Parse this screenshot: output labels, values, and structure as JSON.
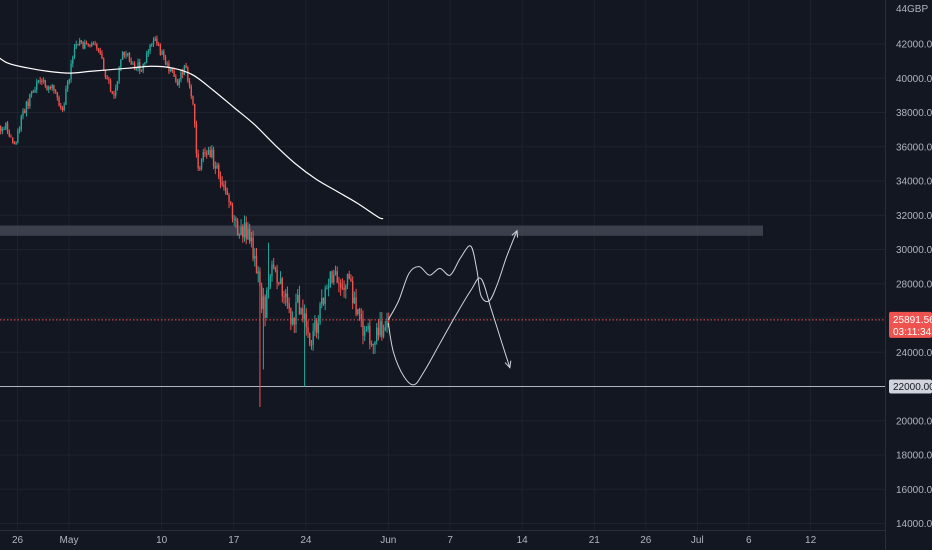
{
  "chart_data": {
    "type": "candlestick",
    "currency": "GBP",
    "y_axis_top_label": "44",
    "yticks": [
      14000,
      16000,
      18000,
      20000,
      22000,
      24000,
      26000,
      28000,
      30000,
      32000,
      34000,
      36000,
      38000,
      40000,
      42000
    ],
    "ylim": [
      13300,
      44900
    ],
    "x_ticks": [
      {
        "label": "26",
        "day": -5
      },
      {
        "label": "May",
        "day": 0
      },
      {
        "label": "10",
        "day": 9
      },
      {
        "label": "17",
        "day": 16
      },
      {
        "label": "24",
        "day": 23
      },
      {
        "label": "Jun",
        "day": 31
      },
      {
        "label": "7",
        "day": 37
      },
      {
        "label": "14",
        "day": 44
      },
      {
        "label": "21",
        "day": 51
      },
      {
        "label": "26",
        "day": 56
      },
      {
        "label": "Jul",
        "day": 61
      },
      {
        "label": "6",
        "day": 66
      },
      {
        "label": "12",
        "day": 72
      }
    ],
    "colors": {
      "up": "#26a69a",
      "down": "#ef5350",
      "ma": "#ffffff",
      "drawing": "#d1d4dc"
    },
    "candle_close_path": [
      [
        -7.3,
        37000
      ],
      [
        -6.0,
        37200
      ],
      [
        -5.4,
        36000
      ],
      [
        -4.3,
        38200
      ],
      [
        -3.0,
        39800
      ],
      [
        -1.8,
        39500
      ],
      [
        -0.6,
        38300
      ],
      [
        0.0,
        40000
      ],
      [
        0.6,
        42300
      ],
      [
        2.0,
        41700
      ],
      [
        2.6,
        42200
      ],
      [
        3.6,
        40000
      ],
      [
        4.3,
        39000
      ],
      [
        5.3,
        41600
      ],
      [
        6.3,
        40800
      ],
      [
        7.0,
        40600
      ],
      [
        8.2,
        42400
      ],
      [
        9.0,
        41400
      ],
      [
        9.8,
        40500
      ],
      [
        10.6,
        39500
      ],
      [
        11.3,
        41000
      ],
      [
        12.1,
        38000
      ],
      [
        12.5,
        34500
      ],
      [
        13.0,
        35500
      ],
      [
        13.8,
        35600
      ],
      [
        14.5,
        34500
      ],
      [
        15.3,
        33500
      ],
      [
        16.0,
        31600
      ],
      [
        16.8,
        30900
      ],
      [
        17.5,
        31200
      ],
      [
        18.2,
        29000
      ],
      [
        18.5,
        27800
      ],
      [
        19.0,
        26200
      ],
      [
        19.6,
        28500
      ],
      [
        20.4,
        28200
      ],
      [
        21.0,
        27400
      ],
      [
        21.6,
        25400
      ],
      [
        22.2,
        26700
      ],
      [
        22.9,
        25800
      ],
      [
        23.5,
        24400
      ],
      [
        24.2,
        26000
      ],
      [
        24.8,
        27600
      ],
      [
        25.6,
        28400
      ],
      [
        26.2,
        27700
      ],
      [
        27.0,
        28300
      ],
      [
        27.8,
        26900
      ],
      [
        28.4,
        25400
      ],
      [
        29.0,
        24900
      ],
      [
        29.8,
        24700
      ],
      [
        30.4,
        25400
      ],
      [
        31.0,
        25900
      ]
    ],
    "moving_average": [
      [
        -7.4,
        41500
      ],
      [
        -6,
        40900
      ],
      [
        -4,
        40600
      ],
      [
        -2,
        40400
      ],
      [
        0,
        40300
      ],
      [
        2,
        40400
      ],
      [
        4,
        40500
      ],
      [
        6,
        40600
      ],
      [
        8,
        40700
      ],
      [
        10,
        40600
      ],
      [
        12,
        40200
      ],
      [
        14,
        39300
      ],
      [
        16,
        38300
      ],
      [
        18,
        37300
      ],
      [
        20,
        36100
      ],
      [
        22,
        35000
      ],
      [
        24,
        34100
      ],
      [
        26,
        33400
      ],
      [
        28,
        32700
      ],
      [
        30,
        31900
      ],
      [
        30.5,
        31800
      ]
    ],
    "resistance_zone": {
      "low": 30800,
      "high": 31400
    },
    "current_price": {
      "label": "25891.56",
      "countdown": "03:11:34",
      "value": 25891.56,
      "color": "#ef5350"
    },
    "support_line": {
      "label": "22000.00",
      "value": 22000
    },
    "projection_bullish": [
      [
        31.0,
        25900
      ],
      [
        32.0,
        27000
      ],
      [
        33.0,
        28600
      ],
      [
        34.0,
        29000
      ],
      [
        35.0,
        28500
      ],
      [
        36.0,
        28900
      ],
      [
        37.0,
        28500
      ],
      [
        38.0,
        29500
      ],
      [
        39.0,
        30200
      ],
      [
        39.6,
        28800
      ],
      [
        40.0,
        27300
      ],
      [
        40.8,
        27000
      ],
      [
        41.6,
        28000
      ],
      [
        42.5,
        29600
      ],
      [
        43.5,
        31100
      ]
    ],
    "projection_bearish": [
      [
        31.0,
        25700
      ],
      [
        31.5,
        24000
      ],
      [
        32.5,
        22600
      ],
      [
        33.5,
        22100
      ],
      [
        34.5,
        22900
      ],
      [
        36.0,
        24500
      ],
      [
        37.5,
        26100
      ],
      [
        39.0,
        27600
      ],
      [
        40.0,
        28300
      ],
      [
        41.0,
        26500
      ],
      [
        42.0,
        24600
      ],
      [
        42.8,
        23100
      ]
    ]
  }
}
